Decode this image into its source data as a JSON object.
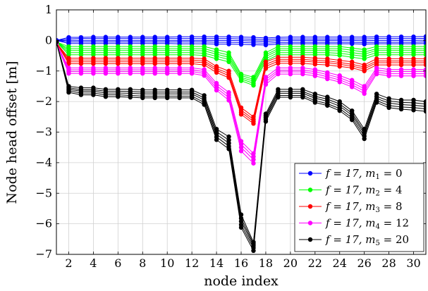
{
  "chart_data": {
    "type": "line",
    "xlabel": "node index",
    "ylabel": "Node head offset [m]",
    "xlim": [
      1,
      31
    ],
    "ylim": [
      -7,
      1
    ],
    "x_ticks": [
      2,
      4,
      6,
      8,
      10,
      12,
      14,
      16,
      18,
      20,
      22,
      24,
      26,
      28,
      30
    ],
    "y_ticks": [
      1,
      0,
      -1,
      -2,
      -3,
      -4,
      -5,
      -6,
      -7
    ],
    "grid": true,
    "legend_position": "bottom-right",
    "x": [
      1,
      2,
      3,
      4,
      5,
      6,
      7,
      8,
      9,
      10,
      11,
      12,
      13,
      14,
      15,
      16,
      17,
      18,
      19,
      20,
      21,
      22,
      23,
      24,
      25,
      26,
      27,
      28,
      29,
      30,
      31
    ],
    "legend": [
      {
        "prefix": "f = 17, m",
        "sub": "1",
        "suffix": " = 0",
        "color": "#0000ff"
      },
      {
        "prefix": "f = 17, m",
        "sub": "2",
        "suffix": " = 4",
        "color": "#00ff00"
      },
      {
        "prefix": "f = 17, m",
        "sub": "3",
        "suffix": " = 8",
        "color": "#ff0000"
      },
      {
        "prefix": "f = 17, m",
        "sub": "4",
        "suffix": " = 12",
        "color": "#ff00ff"
      },
      {
        "prefix": "f = 17, m",
        "sub": "5",
        "suffix": " = 20",
        "color": "#000000"
      }
    ],
    "series": [
      {
        "group": 1,
        "color": "#0000ff",
        "values": [
          0,
          0.1,
          0.1,
          0.11,
          0.11,
          0.11,
          0.11,
          0.11,
          0.11,
          0.11,
          0.12,
          0.12,
          0.12,
          0.12,
          0.12,
          0.11,
          0.1,
          0.08,
          0.1,
          0.11,
          0.11,
          0.11,
          0.11,
          0.11,
          0.11,
          0.11,
          0.12,
          0.12,
          0.12,
          0.12,
          0.13
        ]
      },
      {
        "group": 1,
        "color": "#0000ff",
        "values": [
          0,
          0.05,
          0.06,
          0.06,
          0.06,
          0.06,
          0.06,
          0.06,
          0.06,
          0.06,
          0.06,
          0.06,
          0.06,
          0.06,
          0.06,
          0.05,
          0.04,
          0.03,
          0.05,
          0.05,
          0.05,
          0.05,
          0.05,
          0.05,
          0.05,
          0.05,
          0.06,
          0.06,
          0.06,
          0.06,
          0.07
        ]
      },
      {
        "group": 1,
        "color": "#0000ff",
        "values": [
          0,
          0.0,
          0.0,
          0.0,
          0.0,
          0.0,
          0.0,
          0.0,
          0.0,
          0.0,
          0.0,
          0.0,
          0.0,
          0.0,
          0.0,
          -0.01,
          -0.02,
          -0.03,
          -0.01,
          0.0,
          0.0,
          0.0,
          0.0,
          0.0,
          0.0,
          -0.01,
          0.0,
          0.0,
          0.0,
          0.0,
          0.01
        ]
      },
      {
        "group": 1,
        "color": "#0000ff",
        "values": [
          0,
          -0.05,
          -0.05,
          -0.05,
          -0.05,
          -0.05,
          -0.05,
          -0.05,
          -0.05,
          -0.05,
          -0.05,
          -0.05,
          -0.05,
          -0.06,
          -0.06,
          -0.07,
          -0.08,
          -0.09,
          -0.07,
          -0.06,
          -0.06,
          -0.06,
          -0.06,
          -0.06,
          -0.06,
          -0.07,
          -0.06,
          -0.06,
          -0.06,
          -0.06,
          -0.05
        ]
      },
      {
        "group": 1,
        "color": "#0000ff",
        "values": [
          0,
          -0.1,
          -0.1,
          -0.1,
          -0.1,
          -0.1,
          -0.1,
          -0.1,
          -0.1,
          -0.1,
          -0.11,
          -0.11,
          -0.11,
          -0.12,
          -0.12,
          -0.13,
          -0.14,
          -0.15,
          -0.12,
          -0.11,
          -0.11,
          -0.11,
          -0.11,
          -0.11,
          -0.11,
          -0.12,
          -0.11,
          -0.11,
          -0.11,
          -0.11,
          -0.1
        ]
      },
      {
        "group": 2,
        "color": "#00ff00",
        "values": [
          -0.05,
          -0.2,
          -0.2,
          -0.2,
          -0.2,
          -0.2,
          -0.2,
          -0.2,
          -0.2,
          -0.2,
          -0.2,
          -0.2,
          -0.2,
          -0.3,
          -0.4,
          -1.1,
          -1.2,
          -0.4,
          -0.2,
          -0.2,
          -0.2,
          -0.2,
          -0.2,
          -0.2,
          -0.25,
          -0.3,
          -0.2,
          -0.2,
          -0.2,
          -0.2,
          -0.2
        ]
      },
      {
        "group": 2,
        "color": "#00ff00",
        "values": [
          -0.05,
          -0.27,
          -0.27,
          -0.27,
          -0.27,
          -0.27,
          -0.27,
          -0.27,
          -0.27,
          -0.27,
          -0.27,
          -0.27,
          -0.27,
          -0.38,
          -0.48,
          -1.15,
          -1.27,
          -0.47,
          -0.27,
          -0.27,
          -0.27,
          -0.27,
          -0.27,
          -0.27,
          -0.32,
          -0.38,
          -0.27,
          -0.27,
          -0.27,
          -0.27,
          -0.27
        ]
      },
      {
        "group": 2,
        "color": "#00ff00",
        "values": [
          -0.05,
          -0.33,
          -0.33,
          -0.33,
          -0.33,
          -0.33,
          -0.33,
          -0.33,
          -0.33,
          -0.33,
          -0.33,
          -0.33,
          -0.34,
          -0.45,
          -0.55,
          -1.21,
          -1.33,
          -0.53,
          -0.33,
          -0.33,
          -0.33,
          -0.33,
          -0.33,
          -0.34,
          -0.4,
          -0.45,
          -0.33,
          -0.33,
          -0.33,
          -0.33,
          -0.33
        ]
      },
      {
        "group": 2,
        "color": "#00ff00",
        "values": [
          -0.05,
          -0.4,
          -0.4,
          -0.4,
          -0.4,
          -0.4,
          -0.4,
          -0.4,
          -0.4,
          -0.4,
          -0.4,
          -0.4,
          -0.42,
          -0.52,
          -0.62,
          -1.26,
          -1.4,
          -0.6,
          -0.4,
          -0.4,
          -0.4,
          -0.4,
          -0.4,
          -0.42,
          -0.47,
          -0.52,
          -0.4,
          -0.4,
          -0.4,
          -0.4,
          -0.4
        ]
      },
      {
        "group": 2,
        "color": "#00ff00",
        "values": [
          -0.05,
          -0.47,
          -0.47,
          -0.47,
          -0.47,
          -0.47,
          -0.47,
          -0.47,
          -0.47,
          -0.47,
          -0.47,
          -0.47,
          -0.49,
          -0.6,
          -0.7,
          -1.32,
          -1.47,
          -0.67,
          -0.47,
          -0.47,
          -0.47,
          -0.47,
          -0.47,
          -0.49,
          -0.55,
          -0.6,
          -0.47,
          -0.47,
          -0.47,
          -0.47,
          -0.47
        ]
      },
      {
        "group": 3,
        "color": "#ff0000",
        "values": [
          -0.08,
          -0.58,
          -0.58,
          -0.58,
          -0.58,
          -0.58,
          -0.58,
          -0.58,
          -0.58,
          -0.58,
          -0.58,
          -0.58,
          -0.6,
          -0.85,
          -1.0,
          -2.2,
          -2.5,
          -0.7,
          -0.55,
          -0.55,
          -0.55,
          -0.58,
          -0.6,
          -0.65,
          -0.7,
          -0.8,
          -0.6,
          -0.6,
          -0.6,
          -0.6,
          -0.6
        ]
      },
      {
        "group": 3,
        "color": "#ff0000",
        "values": [
          -0.08,
          -0.64,
          -0.64,
          -0.64,
          -0.64,
          -0.64,
          -0.64,
          -0.64,
          -0.64,
          -0.64,
          -0.64,
          -0.64,
          -0.67,
          -0.92,
          -1.08,
          -2.28,
          -2.58,
          -0.78,
          -0.62,
          -0.62,
          -0.62,
          -0.65,
          -0.67,
          -0.72,
          -0.78,
          -0.87,
          -0.67,
          -0.67,
          -0.67,
          -0.67,
          -0.67
        ]
      },
      {
        "group": 3,
        "color": "#ff0000",
        "values": [
          -0.08,
          -0.7,
          -0.7,
          -0.7,
          -0.7,
          -0.7,
          -0.7,
          -0.7,
          -0.7,
          -0.7,
          -0.7,
          -0.7,
          -0.73,
          -0.98,
          -1.15,
          -2.35,
          -2.65,
          -0.85,
          -0.68,
          -0.68,
          -0.68,
          -0.71,
          -0.73,
          -0.78,
          -0.84,
          -0.93,
          -0.73,
          -0.73,
          -0.73,
          -0.73,
          -0.73
        ]
      },
      {
        "group": 3,
        "color": "#ff0000",
        "values": [
          -0.08,
          -0.76,
          -0.76,
          -0.76,
          -0.76,
          -0.76,
          -0.76,
          -0.76,
          -0.76,
          -0.76,
          -0.76,
          -0.76,
          -0.8,
          -1.05,
          -1.22,
          -2.42,
          -2.72,
          -0.92,
          -0.75,
          -0.75,
          -0.75,
          -0.78,
          -0.8,
          -0.85,
          -0.9,
          -1.0,
          -0.8,
          -0.8,
          -0.8,
          -0.8,
          -0.8
        ]
      },
      {
        "group": 4,
        "color": "#ff00ff",
        "values": [
          -0.1,
          -0.9,
          -0.9,
          -0.9,
          -0.9,
          -0.9,
          -0.9,
          -0.9,
          -0.9,
          -0.9,
          -0.9,
          -0.9,
          -0.95,
          -1.4,
          -1.7,
          -3.3,
          -3.7,
          -1.2,
          -0.9,
          -0.9,
          -0.9,
          -0.95,
          -1.05,
          -1.15,
          -1.3,
          -1.5,
          -0.9,
          -0.95,
          -0.95,
          -0.95,
          -0.95
        ]
      },
      {
        "group": 4,
        "color": "#ff00ff",
        "values": [
          -0.1,
          -0.96,
          -0.96,
          -0.96,
          -0.96,
          -0.96,
          -0.96,
          -0.96,
          -0.96,
          -0.96,
          -0.96,
          -0.96,
          -1.02,
          -1.48,
          -1.79,
          -3.4,
          -3.8,
          -1.28,
          -0.97,
          -0.97,
          -0.97,
          -1.02,
          -1.12,
          -1.22,
          -1.38,
          -1.58,
          -0.97,
          -1.02,
          -1.02,
          -1.02,
          -1.02
        ]
      },
      {
        "group": 4,
        "color": "#ff00ff",
        "values": [
          -0.1,
          -1.02,
          -1.02,
          -1.02,
          -1.02,
          -1.02,
          -1.02,
          -1.02,
          -1.02,
          -1.02,
          -1.02,
          -1.02,
          -1.08,
          -1.56,
          -1.87,
          -3.5,
          -3.9,
          -1.36,
          -1.03,
          -1.03,
          -1.03,
          -1.09,
          -1.19,
          -1.29,
          -1.45,
          -1.66,
          -1.04,
          -1.09,
          -1.09,
          -1.09,
          -1.09
        ]
      },
      {
        "group": 4,
        "color": "#ff00ff",
        "values": [
          -0.1,
          -1.08,
          -1.08,
          -1.08,
          -1.08,
          -1.08,
          -1.08,
          -1.08,
          -1.08,
          -1.08,
          -1.08,
          -1.08,
          -1.15,
          -1.63,
          -1.96,
          -3.62,
          -4.02,
          -1.44,
          -1.1,
          -1.1,
          -1.1,
          -1.16,
          -1.26,
          -1.36,
          -1.52,
          -1.74,
          -1.1,
          -1.16,
          -1.16,
          -1.16,
          -1.16
        ]
      },
      {
        "group": 5,
        "color": "#000000",
        "values": [
          -0.05,
          -1.5,
          -1.55,
          -1.55,
          -1.6,
          -1.6,
          -1.6,
          -1.62,
          -1.62,
          -1.62,
          -1.62,
          -1.62,
          -1.8,
          -2.9,
          -3.15,
          -5.7,
          -6.6,
          -2.4,
          -1.6,
          -1.6,
          -1.6,
          -1.75,
          -1.85,
          -2.0,
          -2.3,
          -2.9,
          -1.75,
          -1.9,
          -1.95,
          -1.95,
          -2.0
        ]
      },
      {
        "group": 5,
        "color": "#000000",
        "values": [
          -0.05,
          -1.55,
          -1.61,
          -1.61,
          -1.66,
          -1.66,
          -1.67,
          -1.69,
          -1.69,
          -1.69,
          -1.69,
          -1.69,
          -1.88,
          -2.99,
          -3.26,
          -5.82,
          -6.66,
          -2.46,
          -1.67,
          -1.67,
          -1.67,
          -1.83,
          -1.92,
          -2.08,
          -2.38,
          -2.98,
          -1.83,
          -1.98,
          -2.03,
          -2.04,
          -2.08
        ]
      },
      {
        "group": 5,
        "color": "#000000",
        "values": [
          -0.05,
          -1.6,
          -1.66,
          -1.66,
          -1.72,
          -1.72,
          -1.73,
          -1.75,
          -1.75,
          -1.75,
          -1.75,
          -1.75,
          -1.95,
          -3.07,
          -3.36,
          -5.92,
          -6.72,
          -2.52,
          -1.73,
          -1.73,
          -1.73,
          -1.89,
          -1.99,
          -2.15,
          -2.45,
          -3.05,
          -1.9,
          -2.05,
          -2.1,
          -2.12,
          -2.16
        ]
      },
      {
        "group": 5,
        "color": "#000000",
        "values": [
          -0.05,
          -1.65,
          -1.72,
          -1.72,
          -1.78,
          -1.78,
          -1.8,
          -1.82,
          -1.82,
          -1.82,
          -1.82,
          -1.82,
          -2.03,
          -3.16,
          -3.46,
          -6.03,
          -6.79,
          -2.58,
          -1.8,
          -1.8,
          -1.8,
          -1.97,
          -2.07,
          -2.23,
          -2.53,
          -3.13,
          -1.97,
          -2.13,
          -2.18,
          -2.2,
          -2.24
        ]
      },
      {
        "group": 5,
        "color": "#000000",
        "values": [
          -0.05,
          -1.7,
          -1.78,
          -1.78,
          -1.84,
          -1.84,
          -1.86,
          -1.88,
          -1.88,
          -1.88,
          -1.88,
          -1.88,
          -2.1,
          -3.25,
          -3.55,
          -6.12,
          -6.88,
          -2.65,
          -1.86,
          -1.86,
          -1.86,
          -2.03,
          -2.13,
          -2.3,
          -2.6,
          -3.22,
          -2.03,
          -2.2,
          -2.25,
          -2.28,
          -2.32
        ]
      }
    ]
  }
}
